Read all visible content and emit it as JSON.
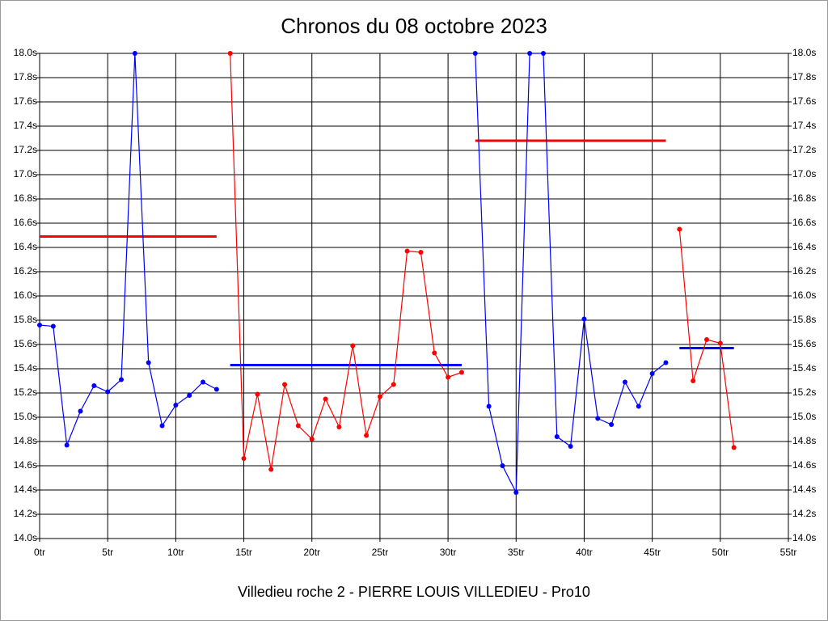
{
  "chart_data": {
    "type": "line",
    "title": "Chronos du 08 octobre 2023",
    "x_label": "Villedieu roche 2 - PIERRE LOUIS VILLEDIEU - Pro10",
    "x": [
      0,
      1,
      2,
      3,
      4,
      5,
      6,
      7,
      8,
      9,
      10,
      11,
      12,
      13,
      14,
      15,
      16,
      17,
      18,
      19,
      20,
      21,
      22,
      23,
      24,
      25,
      26,
      27,
      28,
      29,
      30,
      31,
      32,
      33,
      34,
      35,
      36,
      37,
      38,
      39,
      40,
      41,
      42,
      43,
      44,
      45,
      46,
      47,
      48,
      49,
      50,
      51
    ],
    "series": [
      {
        "color": "#0000ff",
        "values": [
          15.76,
          15.75,
          14.77,
          15.05,
          15.26,
          15.21,
          15.31,
          18.0,
          15.45,
          14.93,
          15.1,
          15.18,
          15.29,
          15.23,
          null,
          null,
          null,
          null,
          null,
          null,
          null,
          null,
          null,
          null,
          null,
          null,
          null,
          null,
          null,
          null,
          null,
          null,
          18.0,
          15.09,
          14.6,
          14.38,
          18.0,
          18.0,
          14.84,
          14.76,
          15.81,
          14.99,
          14.94,
          15.29,
          15.09,
          15.36,
          15.45,
          null,
          null,
          null,
          null,
          null
        ]
      },
      {
        "color": "#ff0000",
        "values": [
          null,
          null,
          null,
          null,
          null,
          null,
          null,
          null,
          null,
          null,
          null,
          null,
          null,
          null,
          18.0,
          14.66,
          15.19,
          14.57,
          15.27,
          14.93,
          14.82,
          15.15,
          14.92,
          15.59,
          14.85,
          15.17,
          15.27,
          16.37,
          16.36,
          15.53,
          15.33,
          15.37,
          null,
          null,
          null,
          null,
          null,
          null,
          null,
          null,
          null,
          null,
          null,
          null,
          null,
          null,
          null,
          16.55,
          15.3,
          15.64,
          15.61,
          14.75
        ]
      }
    ],
    "averages": [
      {
        "x": [
          0,
          13
        ],
        "value": 16.49,
        "color": "#ff0000"
      },
      {
        "x": [
          14,
          31
        ],
        "value": 15.43,
        "color": "#0000ff"
      },
      {
        "x": [
          32,
          46
        ],
        "value": 17.28,
        "color": "#ff0000"
      },
      {
        "x": [
          47,
          51
        ],
        "value": 15.57,
        "color": "#0000ff"
      }
    ],
    "xlim": [
      0,
      55
    ],
    "ylim": [
      14.0,
      18.0
    ],
    "xticks": [
      {
        "value": 0,
        "label": "0tr"
      },
      {
        "value": 5,
        "label": "5tr"
      },
      {
        "value": 10,
        "label": "10tr"
      },
      {
        "value": 15,
        "label": "15tr"
      },
      {
        "value": 20,
        "label": "20tr"
      },
      {
        "value": 25,
        "label": "25tr"
      },
      {
        "value": 30,
        "label": "30tr"
      },
      {
        "value": 35,
        "label": "35tr"
      },
      {
        "value": 40,
        "label": "40tr"
      },
      {
        "value": 45,
        "label": "45tr"
      },
      {
        "value": 50,
        "label": "50tr"
      },
      {
        "value": 55,
        "label": "55tr"
      }
    ],
    "yticks": [
      {
        "value": 14.0,
        "label": "14.0s"
      },
      {
        "value": 14.2,
        "label": "14.2s"
      },
      {
        "value": 14.4,
        "label": "14.4s"
      },
      {
        "value": 14.6,
        "label": "14.6s"
      },
      {
        "value": 14.8,
        "label": "14.8s"
      },
      {
        "value": 15.0,
        "label": "15.0s"
      },
      {
        "value": 15.2,
        "label": "15.2s"
      },
      {
        "value": 15.4,
        "label": "15.4s"
      },
      {
        "value": 15.6,
        "label": "15.6s"
      },
      {
        "value": 15.8,
        "label": "15.8s"
      },
      {
        "value": 16.0,
        "label": "16.0s"
      },
      {
        "value": 16.2,
        "label": "16.2s"
      },
      {
        "value": 16.4,
        "label": "16.4s"
      },
      {
        "value": 16.6,
        "label": "16.6s"
      },
      {
        "value": 16.8,
        "label": "16.8s"
      },
      {
        "value": 17.0,
        "label": "17.0s"
      },
      {
        "value": 17.2,
        "label": "17.2s"
      },
      {
        "value": 17.4,
        "label": "17.4s"
      },
      {
        "value": 17.6,
        "label": "17.6s"
      },
      {
        "value": 17.8,
        "label": "17.8s"
      },
      {
        "value": 18.0,
        "label": "18.0s"
      }
    ],
    "grid": true
  }
}
